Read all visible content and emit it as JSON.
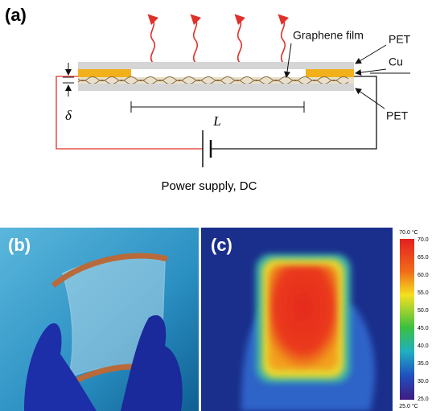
{
  "panel_a": {
    "label": "(a)",
    "graphene_film": "Graphene film",
    "pet_top": "PET",
    "cu": "Cu",
    "pet_bottom": "PET",
    "thickness": "δ",
    "length": "L",
    "power_supply": "Power supply, DC"
  },
  "panel_b": {
    "label": "(b)"
  },
  "panel_c": {
    "label": "(c)",
    "colorbar": {
      "max_label": "70.0 °C",
      "min_label": "25.0 °C",
      "ticks": [
        "70.0",
        "65.0",
        "60.0",
        "55.0",
        "50.0",
        "45.0",
        "40.0",
        "35.0",
        "30.0",
        "25.0"
      ]
    }
  }
}
